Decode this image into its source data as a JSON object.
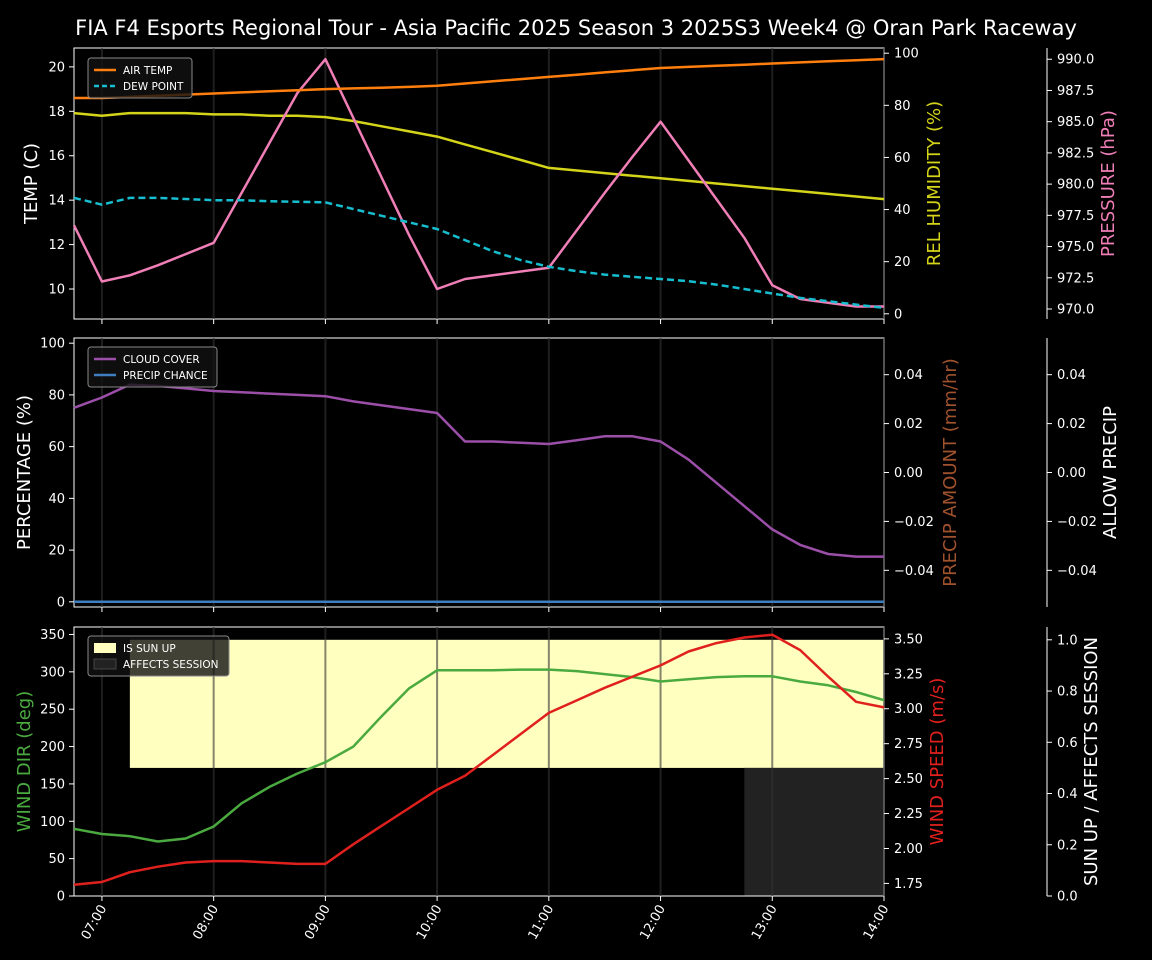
{
  "title": "FIA F4 Esports Regional Tour - Asia Pacific 2025 Season 3 2025S3 Week4 @ Oran Park Raceway",
  "x_ticks": [
    "07:00",
    "08:00",
    "09:00",
    "10:00",
    "11:00",
    "12:00",
    "13:00",
    "14:00"
  ],
  "colors": {
    "air_temp": "#ff7f0e",
    "dew_point": "#17becf",
    "humidity": "#d4d41a",
    "pressure": "#f07fb7",
    "cloud": "#9b4fa8",
    "precip_chance": "#3f7fbf",
    "precip_amount_label": "#a0522d",
    "wind_dir": "#4aaa3f",
    "wind_speed": "#e0201c",
    "sun_up": "#ffffc0",
    "affects_session": "#222222"
  },
  "chart_data": [
    {
      "type": "line",
      "panel": "temperature",
      "x": [
        6.75,
        7.0,
        7.25,
        7.5,
        7.75,
        8.0,
        8.25,
        8.5,
        8.75,
        9.0,
        9.25,
        9.5,
        9.75,
        10.0,
        10.25,
        10.5,
        10.75,
        11.0,
        11.25,
        11.5,
        11.75,
        12.0,
        12.25,
        12.5,
        12.75,
        13.0,
        13.25,
        13.5,
        13.75,
        14.0
      ],
      "series": [
        {
          "name": "AIR TEMP",
          "axis": "left",
          "values": [
            18.6,
            18.6,
            18.65,
            18.7,
            18.75,
            18.8,
            18.85,
            18.9,
            18.95,
            19.0,
            19.03,
            19.06,
            19.1,
            19.15,
            19.25,
            19.35,
            19.45,
            19.55,
            19.65,
            19.75,
            19.85,
            19.95,
            20.0,
            20.05,
            20.1,
            20.15,
            20.2,
            20.25,
            20.3,
            20.35
          ]
        },
        {
          "name": "DEW POINT",
          "axis": "left",
          "values": [
            14.1,
            13.8,
            14.1,
            14.1,
            14.05,
            14.0,
            14.0,
            13.95,
            13.93,
            13.9,
            13.6,
            13.3,
            13.0,
            12.7,
            12.2,
            11.7,
            11.3,
            11.0,
            10.8,
            10.65,
            10.55,
            10.45,
            10.35,
            10.2,
            10.0,
            9.8,
            9.6,
            9.45,
            9.3,
            9.15
          ]
        },
        {
          "name": "REL HUMIDITY",
          "axis": "right1",
          "values": [
            77,
            76,
            77,
            77,
            77,
            76.5,
            76.5,
            76,
            76,
            75.5,
            74,
            72,
            70,
            68,
            65,
            62,
            59,
            56,
            55,
            54,
            53,
            52,
            51,
            50,
            49,
            48,
            47,
            46,
            45,
            44
          ]
        },
        {
          "name": "PRESSURE",
          "axis": "right2",
          "values": [
            976.7,
            972.2,
            972.7,
            973.5,
            974.4,
            975.3,
            979.3,
            983.3,
            987.3,
            990.0,
            985.3,
            980.6,
            975.9,
            971.6,
            972.4,
            972.7,
            973.0,
            973.3,
            976.3,
            979.3,
            982.2,
            985.0,
            981.9,
            978.8,
            975.7,
            971.9,
            970.8,
            970.5,
            970.2,
            970.2
          ]
        }
      ],
      "ylabel_left": "TEMP (C)",
      "ylabel_right1": "REL HUMIDITY (%)",
      "ylabel_right2": "PRESSURE (hPa)",
      "ylim_left": [
        8.65,
        20.85
      ],
      "ylim_right1": [
        -2,
        102
      ],
      "ylim_right2": [
        969.2,
        990.9
      ],
      "yticks_left": [
        "10",
        "12",
        "14",
        "16",
        "18",
        "20"
      ],
      "yticks_right1": [
        "0",
        "20",
        "40",
        "60",
        "80",
        "100"
      ],
      "yticks_right2": [
        "970.0",
        "972.5",
        "975.0",
        "977.5",
        "980.0",
        "982.5",
        "985.0",
        "987.5",
        "990.0"
      ],
      "legend": [
        "AIR TEMP",
        "DEW POINT"
      ],
      "legend_position": "top-left"
    },
    {
      "type": "line",
      "panel": "precipitation",
      "x": [
        6.75,
        7.0,
        7.25,
        7.5,
        7.75,
        8.0,
        8.25,
        8.5,
        8.75,
        9.0,
        9.25,
        9.5,
        9.75,
        10.0,
        10.25,
        10.5,
        10.75,
        11.0,
        11.25,
        11.5,
        11.75,
        12.0,
        12.25,
        12.5,
        12.75,
        13.0,
        13.25,
        13.5,
        13.75,
        14.0
      ],
      "series": [
        {
          "name": "CLOUD COVER",
          "axis": "left",
          "values": [
            75,
            79,
            84,
            83.5,
            82.5,
            81.5,
            81,
            80.5,
            80,
            79.5,
            77.5,
            76,
            74.5,
            73,
            62,
            62,
            61.5,
            61,
            62.5,
            64,
            64,
            62,
            55,
            46,
            37,
            28,
            22,
            18.5,
            17.5,
            17.5
          ]
        },
        {
          "name": "PRECIP CHANCE",
          "axis": "left",
          "values": [
            0,
            0,
            0,
            0,
            0,
            0,
            0,
            0,
            0,
            0,
            0,
            0,
            0,
            0,
            0,
            0,
            0,
            0,
            0,
            0,
            0,
            0,
            0,
            0,
            0,
            0,
            0,
            0,
            0,
            0
          ]
        }
      ],
      "ylabel_left": "PERCENTAGE (%)",
      "ylabel_right1": "PRECIP AMOUNT (mm/hr)",
      "ylabel_right2": "ALLOW PRECIP",
      "ylim_left": [
        -2,
        102
      ],
      "ylim_right": [
        -0.055,
        0.055
      ],
      "yticks_left": [
        "0",
        "20",
        "40",
        "60",
        "80",
        "100"
      ],
      "yticks_right": [
        "−0.04",
        "−0.02",
        "0.00",
        "0.02",
        "0.04"
      ],
      "legend": [
        "CLOUD COVER",
        "PRECIP CHANCE"
      ],
      "legend_position": "top-left"
    },
    {
      "type": "line",
      "panel": "wind",
      "x": [
        6.75,
        7.0,
        7.25,
        7.5,
        7.75,
        8.0,
        8.25,
        8.5,
        8.75,
        9.0,
        9.25,
        9.5,
        9.75,
        10.0,
        10.25,
        10.5,
        10.75,
        11.0,
        11.25,
        11.5,
        11.75,
        12.0,
        12.25,
        12.5,
        12.75,
        13.0,
        13.25,
        13.5,
        13.75,
        14.0
      ],
      "series": [
        {
          "name": "WIND DIR",
          "axis": "left",
          "values": [
            90,
            83,
            80,
            73,
            77,
            93,
            124,
            146,
            164,
            179,
            200,
            240,
            278,
            302,
            302,
            302,
            303,
            303,
            301,
            297,
            293,
            287,
            290,
            293,
            294,
            294,
            287,
            282,
            273,
            262
          ]
        },
        {
          "name": "WIND SPEED",
          "axis": "right1",
          "values": [
            1.74,
            1.76,
            1.83,
            1.87,
            1.9,
            1.91,
            1.91,
            1.9,
            1.89,
            1.89,
            2.03,
            2.16,
            2.29,
            2.42,
            2.52,
            2.67,
            2.82,
            2.97,
            3.06,
            3.15,
            3.23,
            3.31,
            3.41,
            3.47,
            3.51,
            3.53,
            3.42,
            3.23,
            3.05,
            3.01
          ]
        }
      ],
      "sun_up_start": 7.25,
      "affects_session_start": 12.75,
      "ylabel_left": "WIND DIR (deg)",
      "ylabel_right1": "WIND SPEED (m/s)",
      "ylabel_right2": "SUN UP / AFFECTS SESSION",
      "ylim_left": [
        0,
        360
      ],
      "ylim_right1": [
        1.66,
        3.585
      ],
      "ylim_right2": [
        0,
        1.05
      ],
      "yticks_left": [
        "0",
        "50",
        "100",
        "150",
        "200",
        "250",
        "300",
        "350"
      ],
      "yticks_right1": [
        "1.75",
        "2.00",
        "2.25",
        "2.50",
        "2.75",
        "3.00",
        "3.25",
        "3.50"
      ],
      "yticks_right2": [
        "0.0",
        "0.2",
        "0.4",
        "0.6",
        "0.8",
        "1.0"
      ],
      "legend": [
        "IS SUN UP",
        "AFFECTS SESSION"
      ],
      "legend_position": "top-left"
    }
  ]
}
